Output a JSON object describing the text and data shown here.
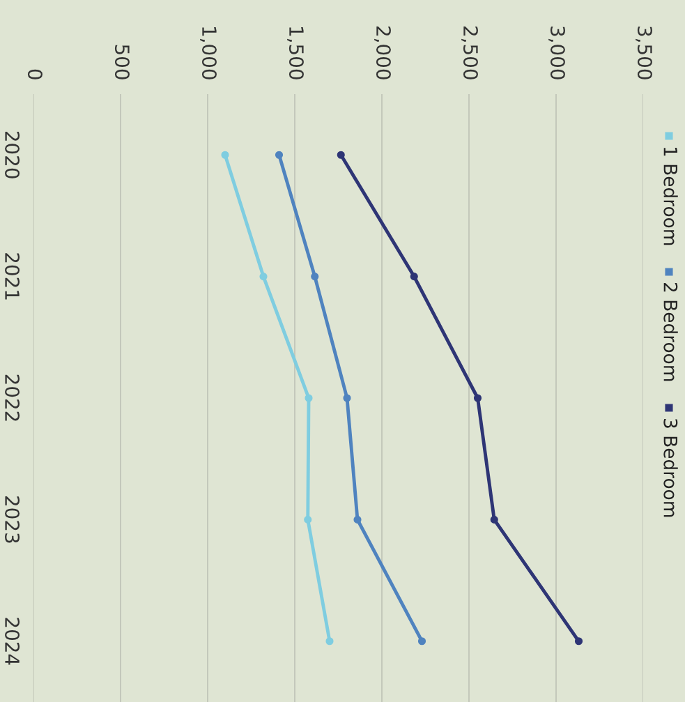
{
  "chart_data": {
    "type": "line",
    "orientation": "horizontal",
    "categories": [
      "2020",
      "2021",
      "2022",
      "2023",
      "2024"
    ],
    "series": [
      {
        "name": "1 Bedroom",
        "color": "#7fcde0",
        "values": [
          1100,
          1320,
          1580,
          1575,
          1700
        ]
      },
      {
        "name": "2 Bedroom",
        "color": "#4f83bf",
        "values": [
          1410,
          1615,
          1800,
          1860,
          2230
        ]
      },
      {
        "name": "3 Bedroom",
        "color": "#2e3575",
        "values": [
          1765,
          2185,
          2550,
          2645,
          3130
        ]
      }
    ],
    "xlim": [
      0,
      3500
    ],
    "xticks": [
      {
        "value": 0,
        "label": "0"
      },
      {
        "value": 500,
        "label": "500"
      },
      {
        "value": 1000,
        "label": "1,000"
      },
      {
        "value": 1500,
        "label": "1,500"
      },
      {
        "value": 2000,
        "label": "2,000"
      },
      {
        "value": 2500,
        "label": "2,500"
      },
      {
        "value": 3000,
        "label": "3,000"
      },
      {
        "value": 3500,
        "label": "3,500"
      }
    ],
    "grid": "x",
    "legend": "right",
    "marker": "circle",
    "line_style": "solid"
  }
}
